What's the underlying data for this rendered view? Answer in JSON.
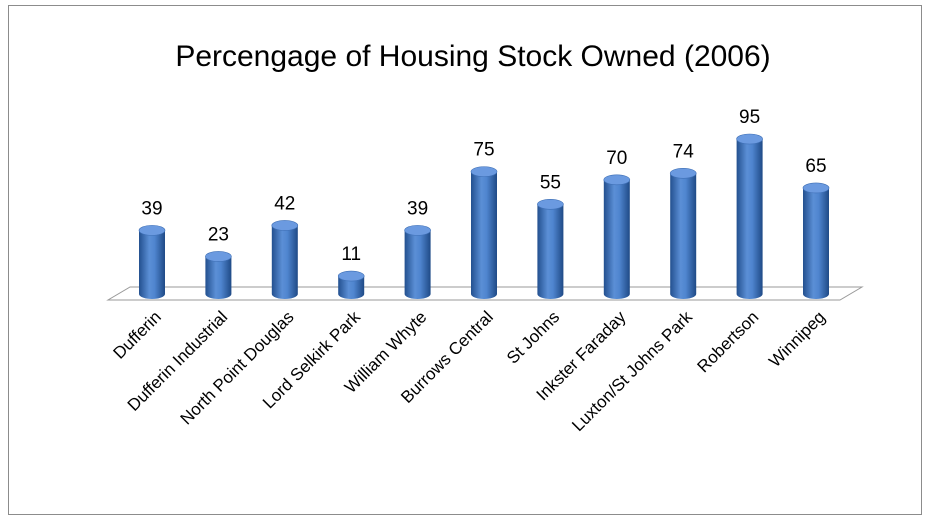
{
  "chart_data": {
    "type": "bar3d",
    "title": "Percengage of Housing Stock Owned (2006)",
    "categories": [
      "Dufferin",
      "Dufferin Industrial",
      "North Point Douglas",
      "Lord Selkirk Park",
      "William Whyte",
      "Burrows Central",
      "St Johns",
      "Inkster Faraday",
      "Luxton/St Johns Park",
      "Robertson",
      "Winnipeg"
    ],
    "values": [
      39,
      23,
      42,
      11,
      39,
      75,
      55,
      70,
      74,
      95,
      65
    ],
    "color": "#3e72bd"
  }
}
